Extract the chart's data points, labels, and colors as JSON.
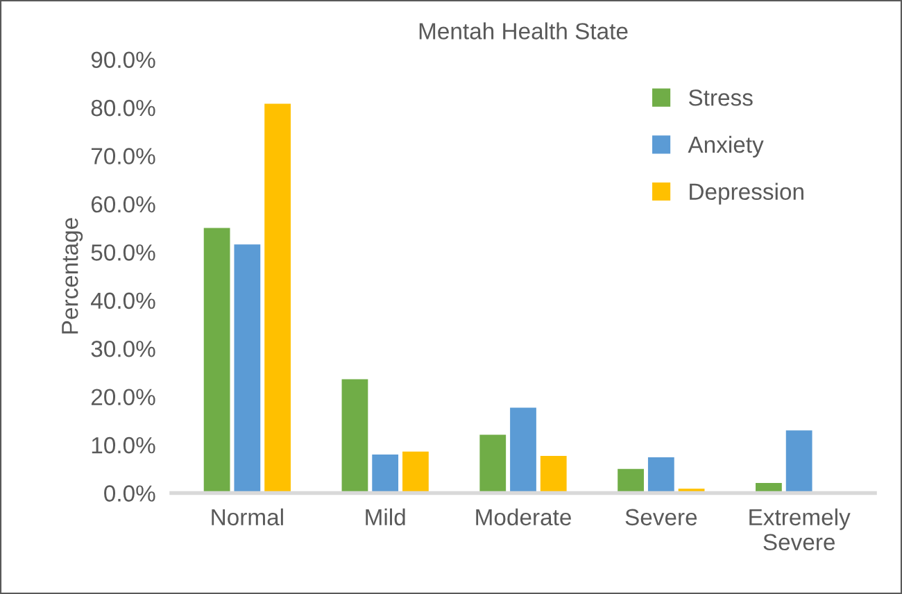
{
  "chart_data": {
    "type": "bar",
    "title": "Mentah Health State",
    "ylabel": "Percentage",
    "categories": [
      "Normal",
      "Mild",
      "Moderate",
      "Severe",
      "Extremely\nSevere"
    ],
    "series": [
      {
        "name": "Stress",
        "color": "#70ad47",
        "values": [
          55.0,
          23.6,
          12.1,
          5.0,
          2.1
        ]
      },
      {
        "name": "Anxiety",
        "color": "#5b9bd5",
        "values": [
          51.6,
          8.0,
          17.7,
          7.4,
          13.0
        ]
      },
      {
        "name": "Depression",
        "color": "#ffc000",
        "values": [
          80.8,
          8.6,
          7.7,
          0.9,
          0
        ]
      }
    ],
    "ylim": [
      0,
      90
    ],
    "yticks": [
      {
        "value": 0,
        "label": "0.0%"
      },
      {
        "value": 10,
        "label": "10.0%"
      },
      {
        "value": 20,
        "label": "20.0%"
      },
      {
        "value": 30,
        "label": "30.0%"
      },
      {
        "value": 40,
        "label": "40.0%"
      },
      {
        "value": 50,
        "label": "50.0%"
      },
      {
        "value": 60,
        "label": "60.0%"
      },
      {
        "value": 70,
        "label": "70.0%"
      },
      {
        "value": 80,
        "label": "80.0%"
      },
      {
        "value": 90,
        "label": "90.0%"
      }
    ],
    "legend": "top right",
    "grid": false
  }
}
